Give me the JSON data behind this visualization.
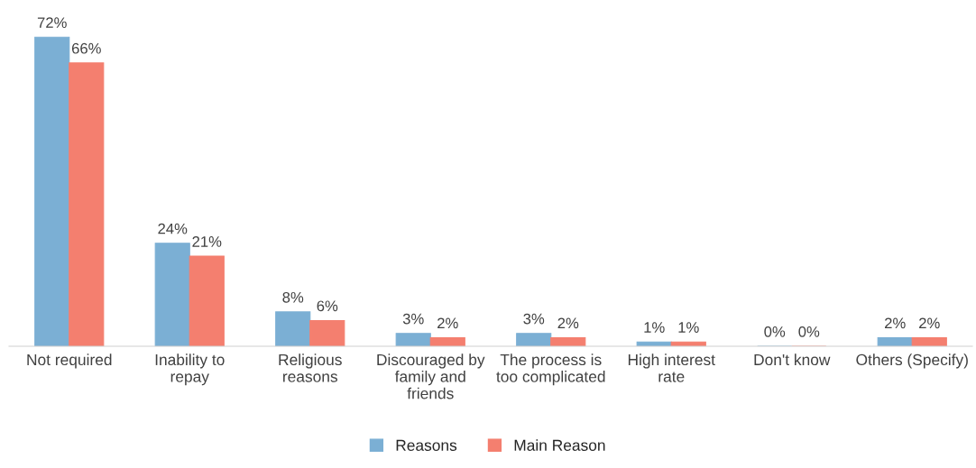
{
  "chart_data": {
    "type": "bar",
    "categories": [
      "Not required",
      "Inability to\nrepay",
      "Religious\nreasons",
      "Discouraged by\nfamily and\nfriends",
      "The process is\ntoo complicated",
      "High interest\nrate",
      "Don't know",
      "Others (Specify)"
    ],
    "series": [
      {
        "name": "Reasons",
        "color": "#7bafd4",
        "values": [
          72,
          24,
          8,
          3,
          3,
          1,
          0,
          2
        ],
        "value_labels": [
          "72%",
          "24%",
          "8%",
          "3%",
          "3%",
          "1%",
          "0%",
          "2%"
        ]
      },
      {
        "name": "Main Reason",
        "color": "#f47f6f",
        "values": [
          66,
          21,
          6,
          2,
          2,
          1,
          0,
          2
        ],
        "value_labels": [
          "66%",
          "21%",
          "6%",
          "2%",
          "2%",
          "1%",
          "0%",
          "2%"
        ]
      }
    ],
    "grid": false,
    "legend": "bottom"
  }
}
